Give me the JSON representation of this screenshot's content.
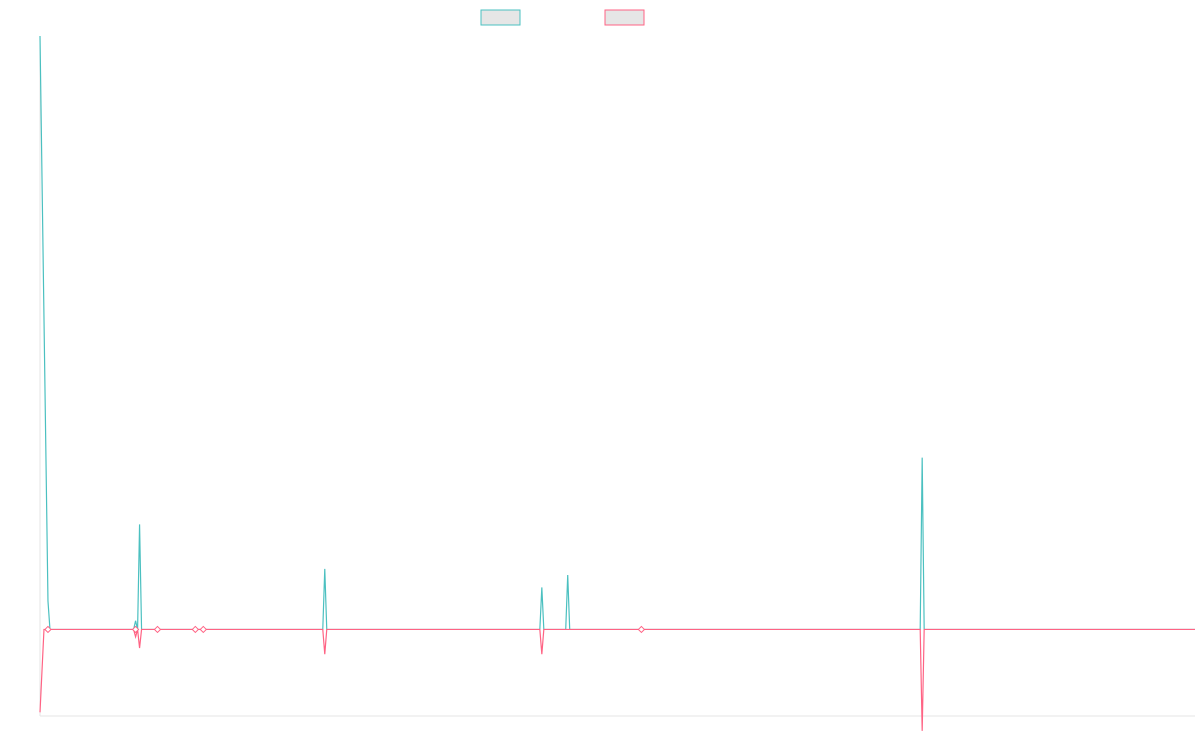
{
  "chart_data": {
    "type": "line",
    "title": "",
    "xlabel": "",
    "ylabel": "",
    "legend": {
      "position": "top-center"
    },
    "grid": false,
    "x": [
      0,
      1,
      2,
      3,
      4,
      5,
      6,
      7,
      8,
      9,
      10,
      11,
      12,
      13,
      14,
      15,
      16,
      17,
      18,
      19,
      20,
      21,
      22,
      23,
      24,
      25,
      26,
      27,
      28,
      29,
      30,
      31,
      32,
      33,
      34,
      35,
      36,
      37,
      38,
      39,
      40,
      41,
      42,
      43,
      44,
      45,
      46,
      47,
      48,
      49,
      50,
      51,
      52,
      53,
      54,
      55,
      56,
      57,
      58,
      59,
      60,
      61,
      62,
      63,
      64,
      65,
      66,
      67,
      68,
      69,
      70,
      71,
      72,
      73,
      74,
      75,
      76,
      77,
      78,
      79,
      80,
      81,
      82,
      83,
      84,
      85,
      86,
      87,
      88,
      89,
      90,
      91,
      92,
      93,
      94,
      95,
      96,
      97,
      98,
      99,
      100,
      101,
      102,
      103,
      104,
      105,
      106,
      107,
      108,
      109,
      110,
      111,
      112,
      113,
      114,
      115,
      116,
      117,
      118,
      119,
      120,
      121,
      122,
      123,
      124,
      125,
      126,
      127,
      128,
      129,
      130,
      131,
      132,
      133,
      134,
      135,
      136,
      137,
      138,
      139,
      140,
      141,
      142,
      143,
      144,
      145,
      146,
      147,
      148,
      149,
      150,
      151,
      152,
      153,
      154,
      155,
      156,
      157,
      158,
      159,
      160,
      161,
      162,
      163,
      164,
      165,
      166,
      167,
      168,
      169,
      170,
      171,
      172,
      173,
      174,
      175,
      176,
      177,
      178,
      179,
      180,
      181,
      182,
      183,
      184,
      185,
      186,
      187,
      188,
      189,
      190,
      191,
      192,
      193,
      194,
      195,
      196,
      197,
      198,
      199,
      200,
      201,
      202,
      203,
      204,
      205,
      206,
      207,
      208,
      209,
      210,
      211,
      212,
      213,
      214,
      215,
      216,
      217,
      218,
      219,
      220,
      221,
      222,
      223,
      224,
      225,
      226,
      227,
      228,
      229,
      230,
      231,
      232,
      233,
      234,
      235,
      236,
      237,
      238,
      239,
      240,
      241,
      242,
      243,
      244,
      245,
      246,
      247,
      248,
      249,
      250,
      251,
      252,
      253,
      254,
      255,
      256,
      257,
      258,
      259,
      260,
      261,
      262,
      263,
      264,
      265,
      266,
      267,
      268,
      269,
      270,
      271,
      272,
      273,
      274,
      275,
      276,
      277,
      278,
      279,
      280,
      281,
      282,
      283,
      284,
      285,
      286,
      287,
      288,
      289,
      290,
      291,
      292,
      293,
      294,
      295,
      296,
      297,
      298,
      299,
      300,
      301,
      302,
      303,
      304,
      305,
      306,
      307,
      308,
      309,
      310,
      311,
      312,
      313,
      314,
      315,
      316,
      317,
      318,
      319,
      320,
      321,
      322,
      323,
      324,
      325,
      326,
      327,
      328,
      329,
      330,
      331,
      332,
      333,
      334,
      335,
      336,
      337,
      338,
      339,
      340,
      341,
      342,
      343,
      344,
      345,
      346,
      347,
      348,
      349,
      350,
      351,
      352,
      353,
      354,
      355,
      356,
      357,
      358,
      359,
      360,
      361,
      362,
      363,
      364,
      365,
      366,
      367,
      368,
      369,
      370,
      371,
      372,
      373,
      374,
      375,
      376,
      377,
      378,
      379,
      380,
      381,
      382,
      383,
      384,
      385,
      386,
      387,
      388,
      389,
      390,
      391,
      392,
      393,
      394,
      395,
      396,
      397,
      398,
      399,
      400,
      401,
      402,
      403,
      404,
      405,
      406,
      407,
      408,
      409,
      410,
      411,
      412,
      413,
      414,
      415,
      416,
      417,
      418,
      419,
      420,
      421,
      422,
      423,
      424,
      425,
      426,
      427,
      428,
      429,
      430,
      431,
      432,
      433,
      434,
      435,
      436,
      437,
      438,
      439,
      440,
      441,
      442,
      443,
      444,
      445,
      446,
      447,
      448,
      449,
      450,
      451,
      452,
      453,
      454,
      455,
      456,
      457,
      458,
      459,
      460,
      461,
      462,
      463,
      464,
      465,
      466,
      467,
      468,
      469,
      470,
      471,
      472,
      473,
      474,
      475,
      476,
      477,
      478,
      479,
      480,
      481,
      482,
      483,
      484,
      485,
      486,
      487,
      488,
      489,
      490,
      491,
      492,
      493,
      494,
      495,
      496,
      497,
      498,
      499,
      500,
      501,
      502,
      503,
      504,
      505,
      506,
      507,
      508,
      509,
      510,
      511,
      512,
      513,
      514,
      515,
      516,
      517,
      518,
      519,
      520,
      521,
      522,
      523,
      524,
      525,
      526,
      527,
      528,
      529,
      530,
      531,
      532,
      533,
      534,
      535,
      536,
      537,
      538,
      539,
      540,
      541,
      542,
      543,
      544,
      545,
      546,
      547,
      548,
      549,
      550,
      551,
      552,
      553,
      554,
      555,
      556,
      557,
      558,
      559,
      560,
      561,
      562,
      563,
      564,
      565,
      566,
      567,
      568,
      569,
      570,
      571,
      572,
      573,
      574,
      575,
      576,
      577,
      578,
      579,
      580
    ],
    "xlim": [
      0,
      580
    ],
    "ylim": [
      -0.7,
      4.8
    ],
    "baseline": 0,
    "series": [
      {
        "color": "#4bc0c0",
        "fill": "#e6e6e6",
        "points": [
          [
            0,
            4.8
          ],
          [
            4,
            0.23
          ],
          [
            5,
            0
          ],
          [
            47,
            0
          ],
          [
            48,
            0.07
          ],
          [
            49,
            0
          ],
          [
            50,
            0.85
          ],
          [
            51,
            0
          ],
          [
            77,
            0
          ],
          [
            78,
            0.02
          ],
          [
            79,
            0
          ],
          [
            81,
            0
          ],
          [
            82,
            0
          ],
          [
            142,
            0
          ],
          [
            143,
            0.49
          ],
          [
            144,
            0
          ],
          [
            251,
            0
          ],
          [
            252,
            0.34
          ],
          [
            253,
            0
          ],
          [
            264,
            0
          ],
          [
            265,
            0.44
          ],
          [
            266,
            0
          ],
          [
            302,
            0
          ],
          [
            442,
            0
          ],
          [
            443,
            1.39
          ],
          [
            444,
            0
          ],
          [
            580,
            0
          ]
        ]
      },
      {
        "color": "#ff6384",
        "fill": "#e6e6e6",
        "points": [
          [
            0,
            -0.67
          ],
          [
            2,
            0
          ],
          [
            4,
            0
          ],
          [
            5,
            0
          ],
          [
            47,
            0
          ],
          [
            48,
            -0.06
          ],
          [
            49,
            0
          ],
          [
            50,
            -0.15
          ],
          [
            51,
            0
          ],
          [
            59,
            0
          ],
          [
            77,
            0
          ],
          [
            78,
            0
          ],
          [
            79,
            0
          ],
          [
            81,
            0
          ],
          [
            82,
            0
          ],
          [
            142,
            0
          ],
          [
            143,
            -0.2
          ],
          [
            144,
            0
          ],
          [
            251,
            0
          ],
          [
            252,
            -0.2
          ],
          [
            253,
            0
          ],
          [
            264,
            0
          ],
          [
            265,
            0
          ],
          [
            266,
            0
          ],
          [
            302,
            0
          ],
          [
            442,
            0
          ],
          [
            443,
            -0.82
          ],
          [
            444,
            0
          ],
          [
            580,
            0
          ]
        ],
        "markers": [
          4,
          48,
          59,
          78,
          82,
          302
        ]
      }
    ]
  }
}
